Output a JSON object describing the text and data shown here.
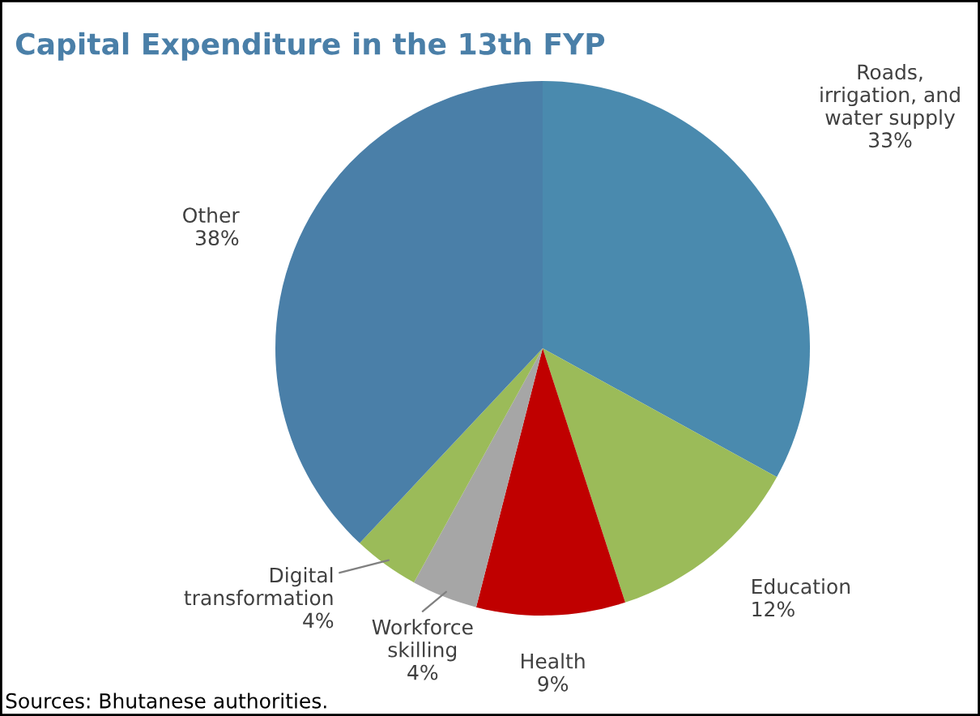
{
  "chart_data": {
    "type": "pie",
    "title": "Capital Expenditure in the 13th FYP",
    "categories": [
      "Roads,\nirrigation, and\nwater supply",
      "Education",
      "Health",
      "Workforce\nskilling",
      "Digital\ntransformation",
      "Other"
    ],
    "values": [
      33,
      12,
      9,
      4,
      4,
      38
    ],
    "value_labels": [
      "33%",
      "12%",
      "9%",
      "4%",
      "4%",
      "38%"
    ],
    "colors": [
      "#4a8aae",
      "#9bbb59",
      "#c00000",
      "#a6a6a6",
      "#9bbb59",
      "#4a7fa8"
    ],
    "legend": false,
    "annotations": [
      "Sources: Bhutanese authorities."
    ]
  }
}
